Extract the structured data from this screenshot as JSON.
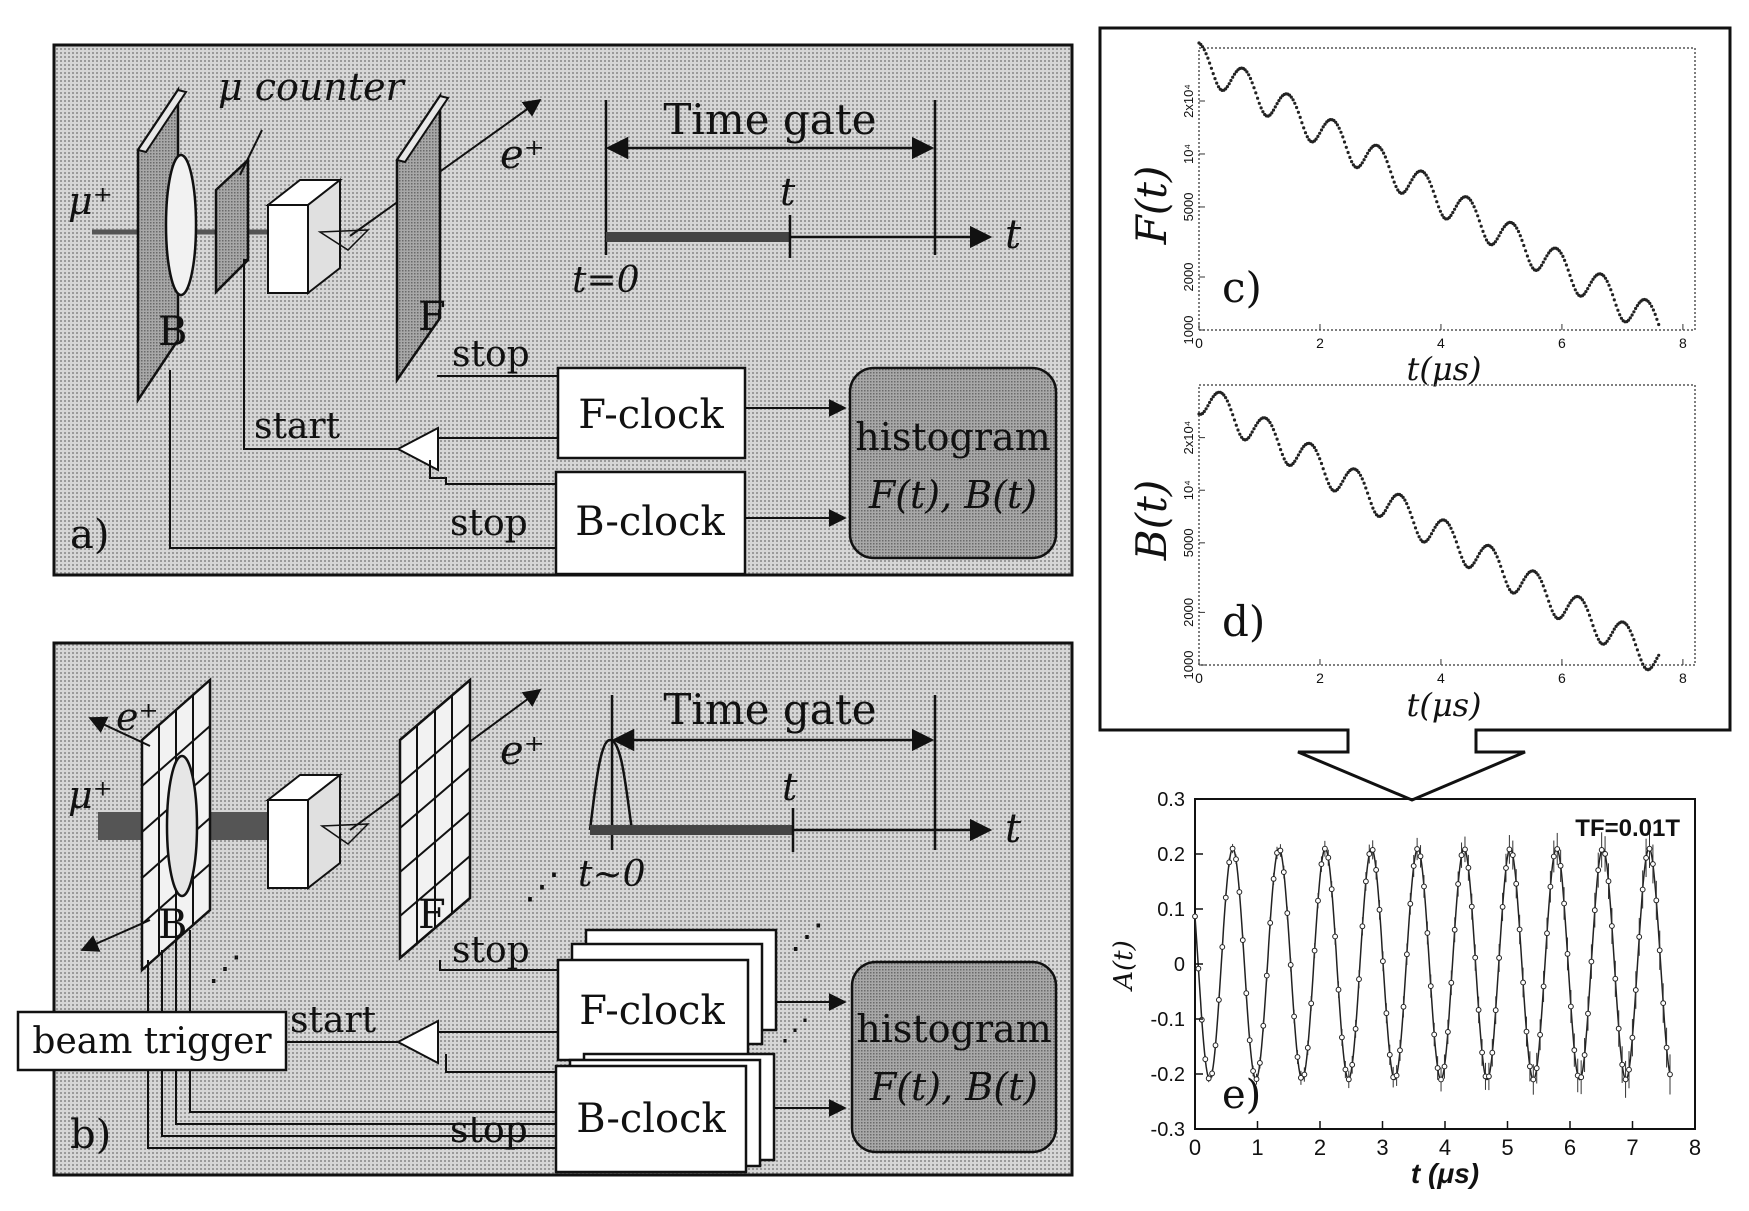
{
  "panel_a": {
    "mu_counter_label": "μ counter",
    "muon_label": "μ⁺",
    "positron_label": "e⁺",
    "b_detector_label": "B",
    "f_detector_label": "F",
    "time_gate_label": "Time gate",
    "t_label": "t",
    "t_axis_label": "t",
    "t0_label": "t=0",
    "stop_f_label": "stop",
    "start_label": "start",
    "stop_b_label": "stop",
    "f_clock_label": "F-clock",
    "b_clock_label": "B-clock",
    "histogram_label": "histogram",
    "histogram_formula": "F(t), B(t)",
    "panel_label": "a)"
  },
  "panel_b": {
    "positron_label_left": "e⁺",
    "positron_label_right": "e⁺",
    "muon_label": "μ⁺",
    "b_detector_label": "B",
    "f_detector_label": "F",
    "time_gate_label": "Time gate",
    "t_label": "t",
    "t_axis_label": "t",
    "t0_label": "t∼0",
    "stop_f_label": "stop",
    "start_label": "start",
    "stop_b_label": "stop",
    "beam_trigger_label": "beam trigger",
    "f_clock_label": "F-clock",
    "b_clock_label": "B-clock",
    "histogram_label": "histogram",
    "histogram_formula": "F(t), B(t)",
    "panel_label": "b)"
  },
  "chart_data": [
    {
      "type": "scatter",
      "panel_label": "c)",
      "ylabel": "F(t)",
      "xlabel": "t(μs)",
      "xlim": [
        0,
        8.2
      ],
      "y_scale": "log",
      "ylim": [
        1000,
        40000
      ],
      "x_ticks": [
        "0",
        "2",
        "4",
        "6",
        "8"
      ],
      "y_ticks": [
        "1000",
        "2000",
        "5000",
        "10⁴",
        "2x10⁴"
      ],
      "y_tick_values": [
        1000,
        2000,
        5000,
        10000,
        20000
      ],
      "lifetime_us": 2.2,
      "n0": 35000,
      "oscillation_period_us": 0.74,
      "oscillation_amplitude": 0.22,
      "x_end": 7.6
    },
    {
      "type": "scatter",
      "panel_label": "d)",
      "ylabel": "B(t)",
      "xlabel": "t(μs)",
      "xlim": [
        0,
        8.2
      ],
      "y_scale": "log",
      "ylim": [
        1000,
        40000
      ],
      "x_ticks": [
        "0",
        "2",
        "4",
        "6",
        "8"
      ],
      "y_ticks": [
        "1000",
        "2000",
        "5000",
        "10⁴",
        "2x10⁴"
      ],
      "y_tick_values": [
        1000,
        2000,
        5000,
        10000,
        20000
      ],
      "lifetime_us": 2.2,
      "n0": 35000,
      "oscillation_period_us": 0.74,
      "oscillation_amplitude": -0.22,
      "x_end": 7.6
    },
    {
      "type": "scatter",
      "panel_label": "e)",
      "annotation": "TF=0.01T",
      "ylabel": "A(t)",
      "xlabel": "t (μs)",
      "xlim": [
        0,
        8
      ],
      "ylim": [
        -0.3,
        0.3
      ],
      "x_ticks": [
        "0",
        "1",
        "2",
        "3",
        "4",
        "5",
        "6",
        "7",
        "8"
      ],
      "x_tick_values": [
        0,
        1,
        2,
        3,
        4,
        5,
        6,
        7,
        8
      ],
      "y_ticks": [
        "0.3",
        "0.2",
        "0.1",
        "0",
        "-0.1",
        "-0.2",
        "-0.3"
      ],
      "y_tick_values": [
        0.3,
        0.2,
        0.1,
        0,
        -0.1,
        -0.2,
        -0.3
      ],
      "amplitude": 0.21,
      "period_us": 0.74,
      "phase_offset_us": 0.05,
      "x_end": 7.6
    }
  ]
}
